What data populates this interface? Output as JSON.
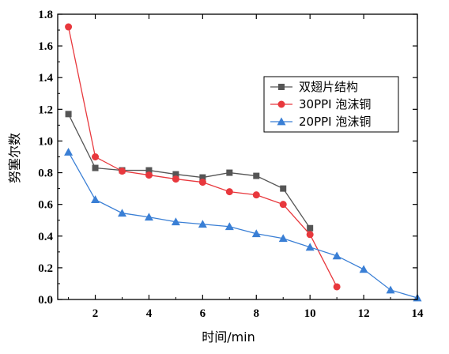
{
  "chart_data": {
    "type": "line",
    "xlabel": "时间/min",
    "ylabel": "努塞尔数",
    "xlim": [
      0.6,
      14
    ],
    "ylim": [
      0.0,
      1.8
    ],
    "x_ticks": [
      2,
      4,
      6,
      8,
      10,
      12,
      14
    ],
    "y_ticks": [
      "0.0",
      "0.2",
      "0.4",
      "0.6",
      "0.8",
      "1.0",
      "1.2",
      "1.4",
      "1.6",
      "1.8"
    ],
    "legend_position": "top-right",
    "grid": false,
    "series": [
      {
        "name": "双翅片结构",
        "color": "#555555",
        "marker": "square",
        "x": [
          1,
          2,
          3,
          4,
          5,
          6,
          7,
          8,
          9,
          10
        ],
        "y": [
          1.17,
          0.83,
          0.815,
          0.815,
          0.79,
          0.77,
          0.8,
          0.78,
          0.7,
          0.45
        ]
      },
      {
        "name": "30PPI 泡沫铜",
        "color": "#e8383d",
        "marker": "circle",
        "x": [
          1,
          2,
          3,
          4,
          5,
          6,
          7,
          8,
          9,
          10,
          11
        ],
        "y": [
          1.72,
          0.9,
          0.81,
          0.785,
          0.76,
          0.74,
          0.68,
          0.66,
          0.6,
          0.41,
          0.08
        ]
      },
      {
        "name": "20PPI 泡沫铜",
        "color": "#3a7fd5",
        "marker": "triangle",
        "x": [
          1,
          2,
          3,
          4,
          5,
          6,
          7,
          8,
          9,
          10,
          11,
          12,
          13,
          14
        ],
        "y": [
          0.93,
          0.63,
          0.545,
          0.52,
          0.49,
          0.475,
          0.46,
          0.415,
          0.385,
          0.33,
          0.275,
          0.19,
          0.06,
          0.01
        ]
      }
    ]
  }
}
